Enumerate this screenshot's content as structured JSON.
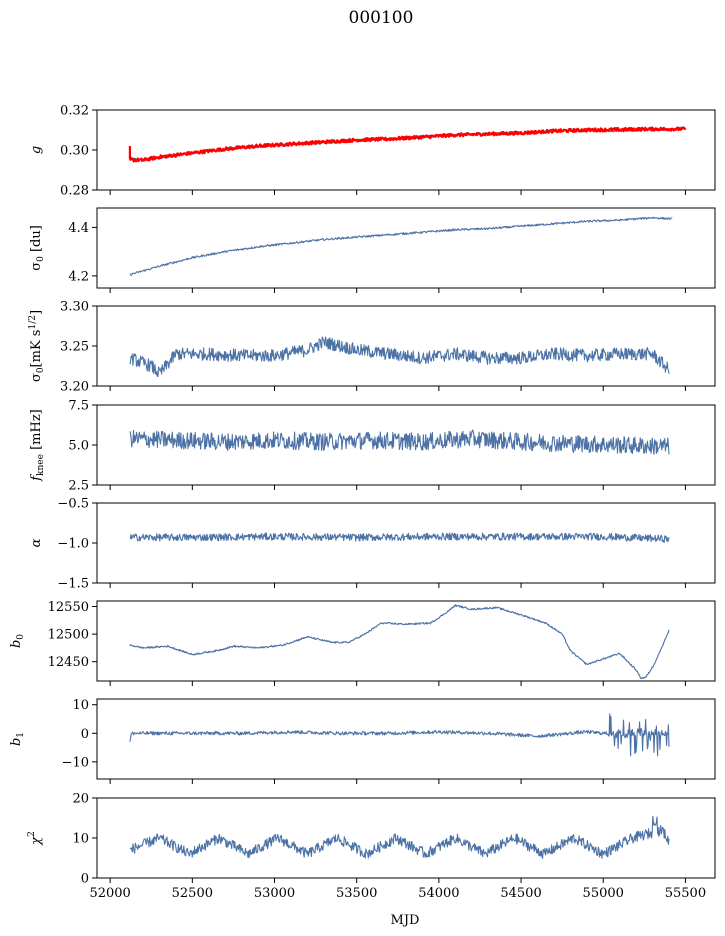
{
  "figure": {
    "title": "000100",
    "xlabel": "MJD"
  },
  "colors": {
    "series": "#4c72a6",
    "model": "#ff0000",
    "axes": "#000000"
  },
  "chart_data": [
    {
      "type": "line",
      "ylabel": "g",
      "ylim": [
        0.28,
        0.32
      ],
      "yticks": [
        0.28,
        0.3,
        0.32
      ],
      "yticklabels": [
        "0.28",
        "0.30",
        "0.32"
      ],
      "series": [
        {
          "x": [
            52120,
            52200,
            52300,
            52500,
            52700,
            52900,
            53100,
            53300,
            53500,
            53700,
            53900,
            54100,
            54300,
            54500,
            54700,
            54900,
            55100,
            55300,
            55420
          ],
          "y": [
            0.296,
            0.2945,
            0.296,
            0.2985,
            0.3005,
            0.3015,
            0.303,
            0.3035,
            0.305,
            0.3055,
            0.3065,
            0.3075,
            0.308,
            0.3085,
            0.3095,
            0.31,
            0.3095,
            0.3105,
            0.31
          ],
          "noise": 0.0006
        },
        {
          "x": [
            52120,
            52200,
            52300,
            52500,
            52700,
            52900,
            53100,
            53300,
            53500,
            53700,
            53900,
            54100,
            54300,
            54500,
            54700,
            54900,
            55100,
            55300,
            55500
          ],
          "y": [
            0.295,
            0.295,
            0.2965,
            0.2985,
            0.3005,
            0.302,
            0.303,
            0.304,
            0.305,
            0.3055,
            0.3065,
            0.3075,
            0.308,
            0.3085,
            0.3095,
            0.31,
            0.3102,
            0.3105,
            0.3105
          ],
          "noise": 0.0008
        }
      ]
    },
    {
      "type": "line",
      "ylabel": "σ0 [du]",
      "ylim": [
        4.15,
        4.48
      ],
      "yticks": [
        4.2,
        4.4
      ],
      "yticklabels": [
        "4.2",
        "4.4"
      ],
      "series": [
        {
          "x": [
            52120,
            52300,
            52500,
            52700,
            52900,
            53100,
            53300,
            53500,
            53700,
            53900,
            54100,
            54300,
            54500,
            54700,
            54900,
            55100,
            55300,
            55420
          ],
          "y": [
            4.205,
            4.24,
            4.275,
            4.3,
            4.32,
            4.335,
            4.35,
            4.36,
            4.37,
            4.38,
            4.39,
            4.395,
            4.405,
            4.415,
            4.425,
            4.43,
            4.44,
            4.435
          ],
          "noise": 0.004
        }
      ]
    },
    {
      "type": "line",
      "ylabel": "σ0[mK s^1/2]",
      "ylim": [
        3.2,
        3.3
      ],
      "yticks": [
        3.2,
        3.25,
        3.3
      ],
      "yticklabels": [
        "3.20",
        "3.25",
        "3.30"
      ],
      "series": [
        {
          "x": [
            52120,
            52250,
            52300,
            52400,
            52600,
            52800,
            53000,
            53200,
            53300,
            53500,
            53700,
            53900,
            54100,
            54300,
            54500,
            54700,
            54900,
            55100,
            55300,
            55400
          ],
          "y": [
            3.235,
            3.225,
            3.215,
            3.24,
            3.24,
            3.238,
            3.238,
            3.245,
            3.255,
            3.245,
            3.24,
            3.235,
            3.24,
            3.235,
            3.235,
            3.24,
            3.238,
            3.24,
            3.24,
            3.22
          ],
          "noise": 0.008
        }
      ]
    },
    {
      "type": "line",
      "ylabel": "f_knee [mHz]",
      "ylim": [
        2.5,
        7.5
      ],
      "yticks": [
        2.5,
        5.0,
        7.5
      ],
      "yticklabels": [
        "2.5",
        "5.0",
        "7.5"
      ],
      "series": [
        {
          "x": [
            52120,
            52400,
            52700,
            53000,
            53300,
            53600,
            53900,
            54200,
            54500,
            54800,
            55100,
            55400
          ],
          "y": [
            5.4,
            5.3,
            5.2,
            5.3,
            5.2,
            5.3,
            5.2,
            5.4,
            5.2,
            5.1,
            5.0,
            4.9
          ],
          "noise": 0.55
        }
      ]
    },
    {
      "type": "line",
      "ylabel": "α",
      "ylim": [
        -1.5,
        -0.5
      ],
      "yticks": [
        -1.5,
        -1.0,
        -0.5
      ],
      "yticklabels": [
        "−1.5",
        "−1.0",
        "−0.5"
      ],
      "series": [
        {
          "x": [
            52120,
            52500,
            53000,
            53500,
            54000,
            54500,
            55000,
            55400
          ],
          "y": [
            -0.93,
            -0.93,
            -0.92,
            -0.93,
            -0.92,
            -0.92,
            -0.92,
            -0.95
          ],
          "noise": 0.045
        }
      ]
    },
    {
      "type": "line",
      "ylabel": "b0",
      "ylim": [
        12415,
        12560
      ],
      "yticks": [
        12450,
        12500,
        12550
      ],
      "yticklabels": [
        "12450",
        "12500",
        "12550"
      ],
      "series": [
        {
          "x": [
            52120,
            52200,
            52350,
            52500,
            52650,
            52750,
            52900,
            53050,
            53200,
            53350,
            53450,
            53550,
            53650,
            53800,
            53950,
            54050,
            54100,
            54200,
            54350,
            54500,
            54650,
            54750,
            54800,
            54900,
            55000,
            55050,
            55100,
            55150,
            55200,
            55230,
            55260,
            55300,
            55340,
            55400
          ],
          "y": [
            12480,
            12475,
            12478,
            12463,
            12470,
            12478,
            12475,
            12480,
            12495,
            12485,
            12485,
            12500,
            12520,
            12518,
            12520,
            12540,
            12552,
            12545,
            12548,
            12535,
            12520,
            12500,
            12470,
            12445,
            12455,
            12460,
            12465,
            12450,
            12435,
            12420,
            12422,
            12440,
            12465,
            12507
          ],
          "noise": 1.5
        }
      ]
    },
    {
      "type": "line",
      "ylabel": "b1",
      "ylim": [
        -16,
        12
      ],
      "yticks": [
        -10,
        0,
        10
      ],
      "yticklabels": [
        "−10",
        "0",
        "10"
      ],
      "series": [
        {
          "x": [
            52120,
            52130,
            52200,
            52500,
            52800,
            53100,
            53400,
            53700,
            54000,
            54300,
            54600,
            54900,
            55000,
            55400
          ],
          "y": [
            -3,
            0,
            0,
            0,
            0,
            0.5,
            0,
            0,
            0.5,
            0,
            -1,
            0.5,
            0,
            0
          ],
          "noise": 0.6
        }
      ]
    },
    {
      "type": "line",
      "ylabel": "χ2",
      "ylim": [
        0,
        20
      ],
      "yticks": [
        0,
        10,
        20
      ],
      "yticklabels": [
        "0",
        "10",
        "20"
      ],
      "xticks": [
        52000,
        52500,
        53000,
        53500,
        54000,
        54500,
        55000,
        55500
      ],
      "xticklabels": [
        "52000",
        "52500",
        "53000",
        "53500",
        "54000",
        "54500",
        "55000",
        "55500"
      ],
      "series": [
        {
          "x": [
            52120,
            52300,
            52480,
            52660,
            52840,
            53020,
            53200,
            53380,
            53560,
            53740,
            53920,
            54100,
            54280,
            54460,
            54640,
            54820,
            55000,
            55180,
            55360,
            55400
          ],
          "y": [
            7,
            10,
            6,
            10,
            6,
            10,
            6,
            10,
            6,
            10,
            6,
            10,
            6,
            10,
            6,
            10,
            6,
            10,
            12,
            9
          ],
          "noise": 1.3
        }
      ]
    }
  ]
}
